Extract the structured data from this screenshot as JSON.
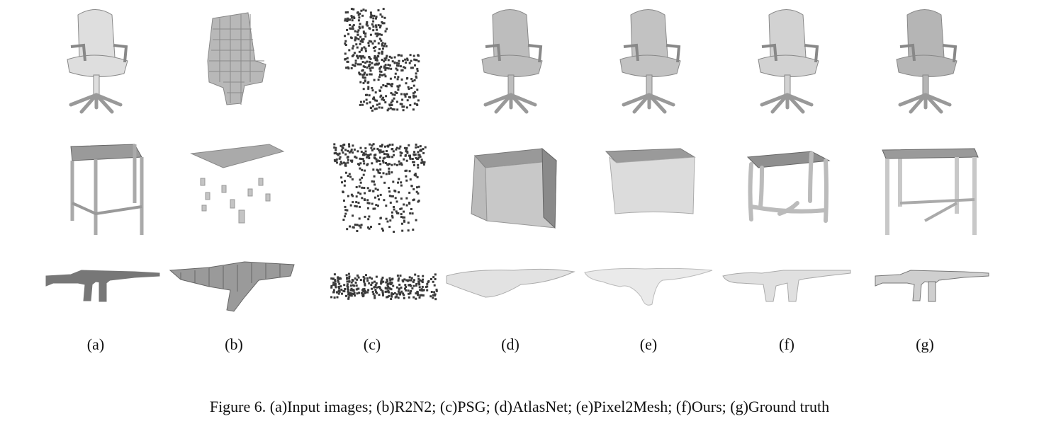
{
  "columns": [
    {
      "label": "(a)"
    },
    {
      "label": "(b)"
    },
    {
      "label": "(c)"
    },
    {
      "label": "(d)"
    },
    {
      "label": "(e)"
    },
    {
      "label": "(f)"
    },
    {
      "label": "(g)"
    }
  ],
  "caption": "Figure 6.  (a)Input images; (b)R2N2; (c)PSG; (d)AtlasNet; (e)Pixel2Mesh; (f)Ours; (g)Ground truth",
  "colors": {
    "light_mesh": "#d9d9d9",
    "mid_mesh": "#a8a8a8",
    "dark_mesh": "#7a7a7a",
    "points": "#3a3a3a"
  }
}
